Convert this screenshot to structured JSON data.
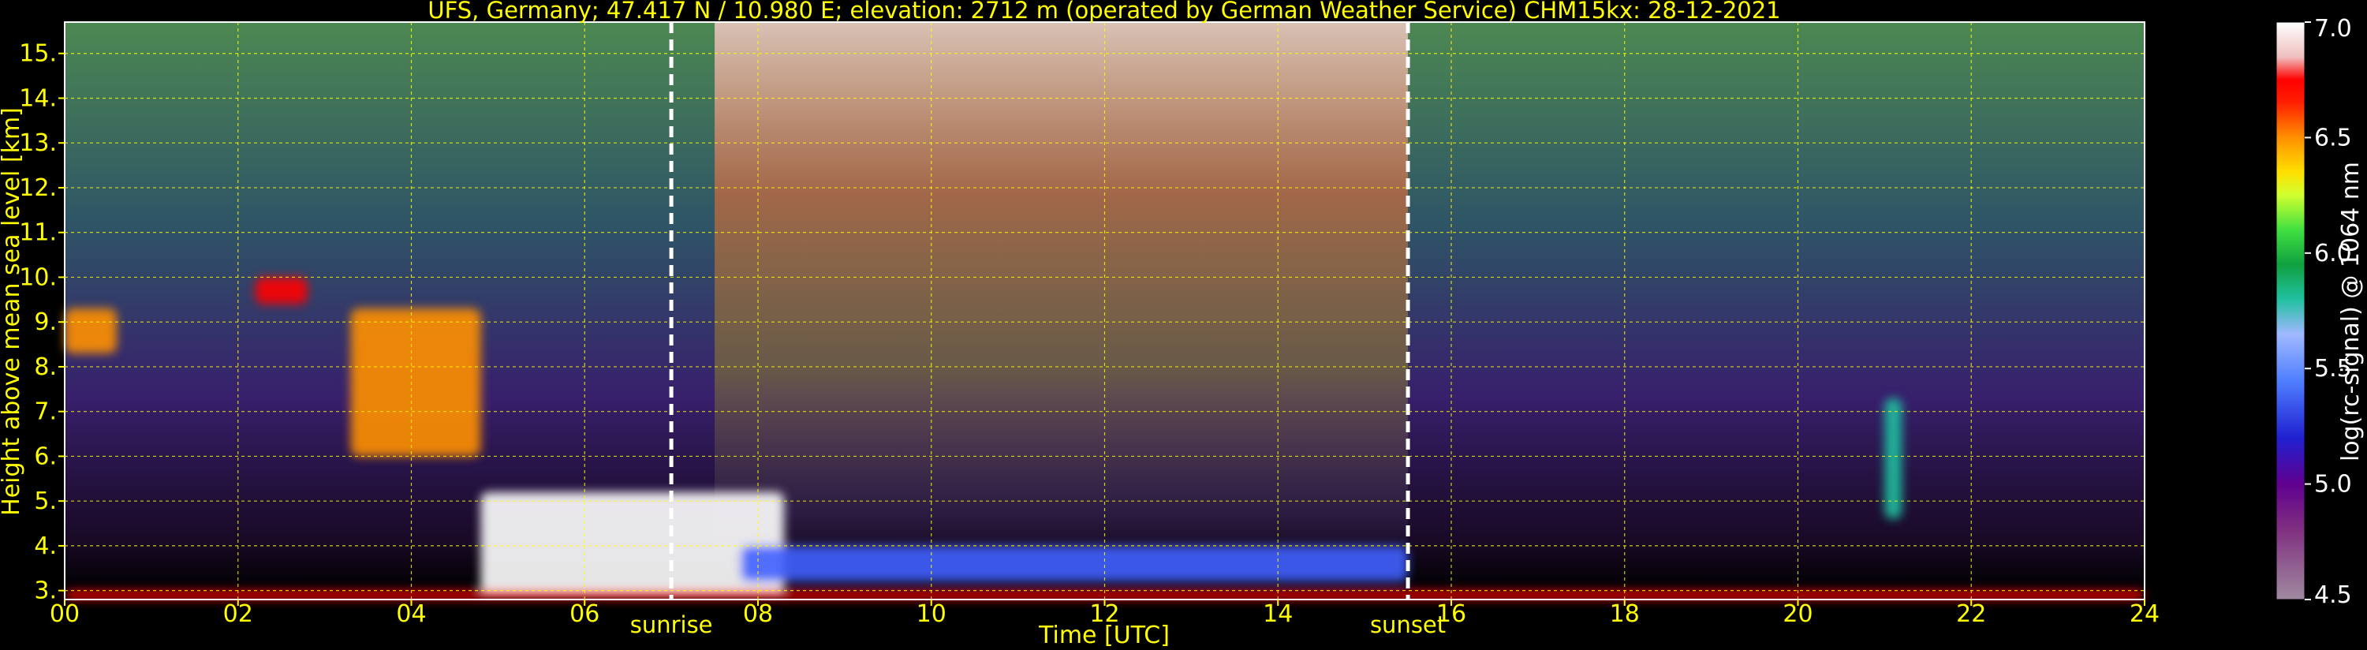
{
  "chart_data": {
    "type": "heatmap",
    "title": "UFS, Germany; 47.417 N / 10.980 E; elevation: 2712 m  (operated by German Weather Service)    CHM15kx: 28-12-2021",
    "xlabel": "Time [UTC]",
    "ylabel": "Height above mean sea level [km]",
    "xlim": [
      0,
      24
    ],
    "ylim": [
      2.8,
      15.7
    ],
    "x_ticks": [
      0,
      2,
      4,
      6,
      8,
      10,
      12,
      14,
      16,
      18,
      20,
      22,
      24
    ],
    "x_tick_labels": [
      "00",
      "02",
      "04",
      "06",
      "08",
      "10",
      "12",
      "14",
      "16",
      "18",
      "20",
      "22",
      "24"
    ],
    "y_ticks": [
      3,
      4,
      5,
      6,
      7,
      8,
      9,
      10,
      11,
      12,
      13,
      14,
      15
    ],
    "y_tick_labels": [
      "3.",
      "4.",
      "5.",
      "6.",
      "7.",
      "8.",
      "9.",
      "10.",
      "11.",
      "12.",
      "13.",
      "14.",
      "15."
    ],
    "grid": true,
    "markers": [
      {
        "label": "sunrise",
        "x": 7.0
      },
      {
        "label": "sunset",
        "x": 15.5
      }
    ],
    "colorbar": {
      "label": "log(rc-signal) @ 1064 nm",
      "range": [
        4.5,
        7.0
      ],
      "ticks": [
        4.5,
        5.0,
        5.5,
        6.0,
        6.5,
        7.0
      ],
      "tick_labels": [
        "4.5",
        "5.0",
        "5.5",
        "6.0",
        "6.5",
        "7.0"
      ]
    },
    "features": [
      {
        "t0": 0.0,
        "t1": 0.6,
        "h0": 8.3,
        "h1": 9.3,
        "level": 6.3
      },
      {
        "t0": 2.2,
        "t1": 2.8,
        "h0": 9.4,
        "h1": 10.0,
        "level": 6.7
      },
      {
        "t0": 3.3,
        "t1": 4.8,
        "h0": 6.0,
        "h1": 9.3,
        "level": 6.4
      },
      {
        "t0": 4.8,
        "t1": 8.3,
        "h0": 2.9,
        "h1": 5.2,
        "level": 7.0
      },
      {
        "t0": 7.8,
        "t1": 15.5,
        "h0": 3.2,
        "h1": 4.0,
        "level": 5.3
      },
      {
        "t0": 21.0,
        "t1": 21.2,
        "h0": 4.6,
        "h1": 7.3,
        "level": 5.6
      },
      {
        "t0": 0.0,
        "t1": 24.0,
        "h0": 2.8,
        "h1": 3.0,
        "level": 6.9
      }
    ]
  }
}
